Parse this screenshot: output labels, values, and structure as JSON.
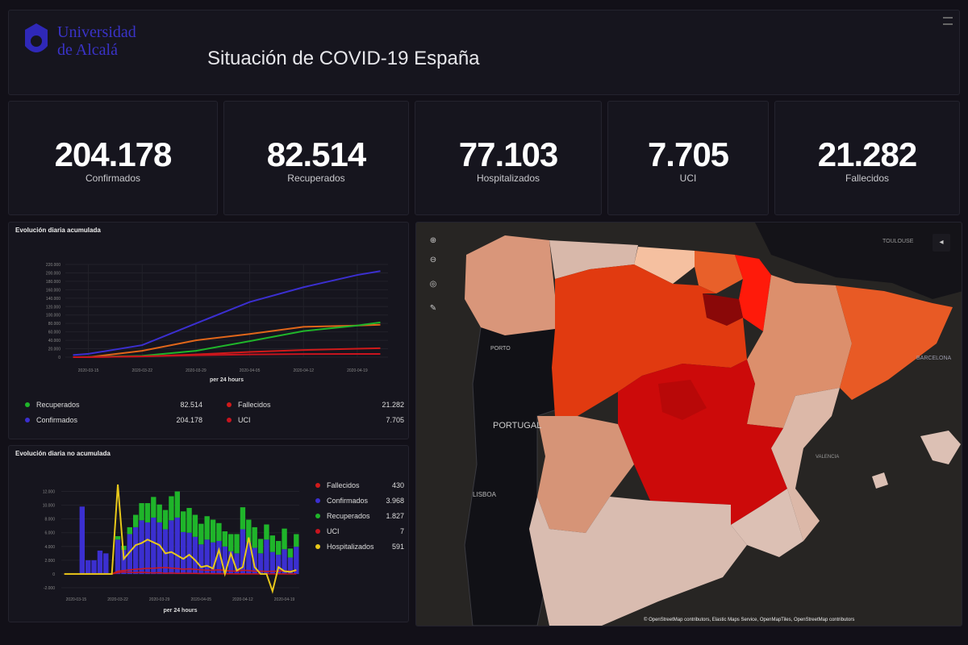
{
  "header": {
    "logo_line1": "Universidad",
    "logo_line2": "de Alcalá",
    "title": "Situación de COVID-19 España"
  },
  "stats": [
    {
      "value": "204.178",
      "label": "Confirmados"
    },
    {
      "value": "82.514",
      "label": "Recuperados"
    },
    {
      "value": "77.103",
      "label": "Hospitalizados"
    },
    {
      "value": "7.705",
      "label": "UCI"
    },
    {
      "value": "21.282",
      "label": "Fallecidos"
    }
  ],
  "colors": {
    "Confirmados": "#3b2fd0",
    "Recuperados": "#1fb52a",
    "Hospitalizados": "#e8c81a",
    "Fallecidos": "#d01a1a",
    "UCI": "#c8141e",
    "Hospitalizados_cum": "#e0661a"
  },
  "chart_data": [
    {
      "type": "line",
      "title": "Evolución diaria acumulada",
      "xlabel": "per 24 hours",
      "ylabel": "",
      "ylim": [
        0,
        220000
      ],
      "yticks": [
        "0",
        "20.000",
        "40.000",
        "60.000",
        "80.000",
        "100.000",
        "120.000",
        "140.000",
        "160.000",
        "180.000",
        "200.000",
        "220.000"
      ],
      "xticks": [
        "2020-03-15",
        "2020-03-22",
        "2020-03-29",
        "2020-04-05",
        "2020-04-12",
        "2020-04-19"
      ],
      "x": [
        "2020-03-13",
        "2020-03-15",
        "2020-03-22",
        "2020-03-29",
        "2020-04-05",
        "2020-04-12",
        "2020-04-19",
        "2020-04-22"
      ],
      "series": [
        {
          "name": "Confirmados",
          "values": [
            5000,
            7800,
            28600,
            80000,
            131000,
            166000,
            195000,
            204178
          ]
        },
        {
          "name": "Hospitalizados",
          "values": [
            0,
            0,
            15000,
            40000,
            55000,
            72000,
            75000,
            77103
          ]
        },
        {
          "name": "Recuperados",
          "values": [
            0,
            500,
            3000,
            15000,
            38000,
            62000,
            75000,
            82514
          ]
        },
        {
          "name": "Fallecidos",
          "values": [
            100,
            300,
            1700,
            6500,
            12400,
            17000,
            20000,
            21282
          ]
        },
        {
          "name": "UCI",
          "values": [
            0,
            0,
            2000,
            4500,
            6500,
            7300,
            7600,
            7705
          ]
        }
      ],
      "legend": [
        {
          "name": "Recuperados",
          "value": "82.514"
        },
        {
          "name": "Fallecidos",
          "value": "21.282"
        },
        {
          "name": "Confirmados",
          "value": "204.178"
        },
        {
          "name": "UCI",
          "value": "7.705"
        }
      ],
      "legend_position": "bottom",
      "grid": true
    },
    {
      "type": "bar",
      "title": "Evolución diaria no acumulada",
      "xlabel": "per 24 hours",
      "ylim": [
        -2000,
        13000
      ],
      "yticks": [
        "-2.000",
        "0",
        "2.000",
        "4.000",
        "6.000",
        "8.000",
        "10.000",
        "12.000"
      ],
      "xticks": [
        "2020-03-15",
        "2020-03-22",
        "2020-03-29",
        "2020-04-05",
        "2020-04-12",
        "2020-04-19"
      ],
      "x_start": "2020-03-13",
      "stacked_bars": [
        {
          "name": "Confirmados",
          "values": [
            0,
            0,
            0,
            9800,
            2000,
            2000,
            3400,
            3000,
            0,
            5000,
            3500,
            5800,
            6800,
            7800,
            7500,
            8200,
            7500,
            6500,
            7800,
            8200,
            6100,
            6000,
            5400,
            4300,
            5000,
            4600,
            4800,
            4000,
            3300,
            3000,
            6500,
            4600,
            3800,
            3000,
            5000,
            3200,
            2800,
            3600,
            2400,
            3968
          ]
        },
        {
          "name": "Recuperados",
          "values": [
            0,
            0,
            0,
            0,
            0,
            0,
            0,
            0,
            0,
            500,
            600,
            1000,
            1800,
            2500,
            2800,
            3000,
            2600,
            2800,
            3500,
            3800,
            3000,
            3600,
            3200,
            3000,
            3400,
            3300,
            2600,
            2200,
            2500,
            2800,
            3200,
            3300,
            3000,
            2100,
            2200,
            2400,
            2000,
            3000,
            1300,
            1827
          ]
        }
      ],
      "lines": [
        {
          "name": "Hospitalizados",
          "values": [
            0,
            0,
            0,
            0,
            0,
            0,
            0,
            0,
            0,
            13000,
            2200,
            3200,
            4200,
            4500,
            5000,
            4600,
            4200,
            3000,
            3200,
            2700,
            2200,
            2800,
            2000,
            1000,
            1200,
            800,
            3500,
            0,
            3000,
            500,
            1000,
            5300,
            1000,
            0,
            0,
            -2500,
            1000,
            400,
            300,
            591
          ]
        },
        {
          "name": "Fallecidos",
          "values": [
            0,
            0,
            0,
            0,
            0,
            0,
            0,
            0,
            0,
            400,
            500,
            600,
            700,
            750,
            830,
            840,
            900,
            950,
            860,
            800,
            700,
            750,
            680,
            600,
            550,
            560,
            600,
            520,
            450,
            400,
            550,
            500,
            400,
            420,
            380,
            400,
            410,
            440,
            400,
            430
          ]
        },
        {
          "name": "UCI",
          "values": [
            0,
            0,
            0,
            0,
            0,
            0,
            0,
            0,
            0,
            200,
            300,
            250,
            200,
            250,
            200,
            150,
            200,
            100,
            150,
            80,
            120,
            100,
            80,
            50,
            60,
            40,
            30,
            20,
            15,
            10,
            20,
            10,
            8,
            12,
            6,
            9,
            5,
            8,
            6,
            7
          ]
        }
      ],
      "legend": [
        {
          "name": "Fallecidos",
          "value": "430"
        },
        {
          "name": "Confirmados",
          "value": "3.968"
        },
        {
          "name": "Recuperados",
          "value": "1.827"
        },
        {
          "name": "UCI",
          "value": "7"
        },
        {
          "name": "Hospitalizados",
          "value": "591"
        }
      ],
      "legend_position": "right",
      "grid": true
    }
  ],
  "map": {
    "labels": [
      "PORTO",
      "PORTUGAL",
      "LISBOA",
      "BARCELONA",
      "TOULOUSE",
      "VALENCIA"
    ],
    "attribution": "© OpenStreetMap contributors, Elastic Maps Service, OpenMapTiles, OpenStreetMap contributors",
    "controls": [
      "zoom-in",
      "zoom-out",
      "reset",
      "draw"
    ]
  }
}
